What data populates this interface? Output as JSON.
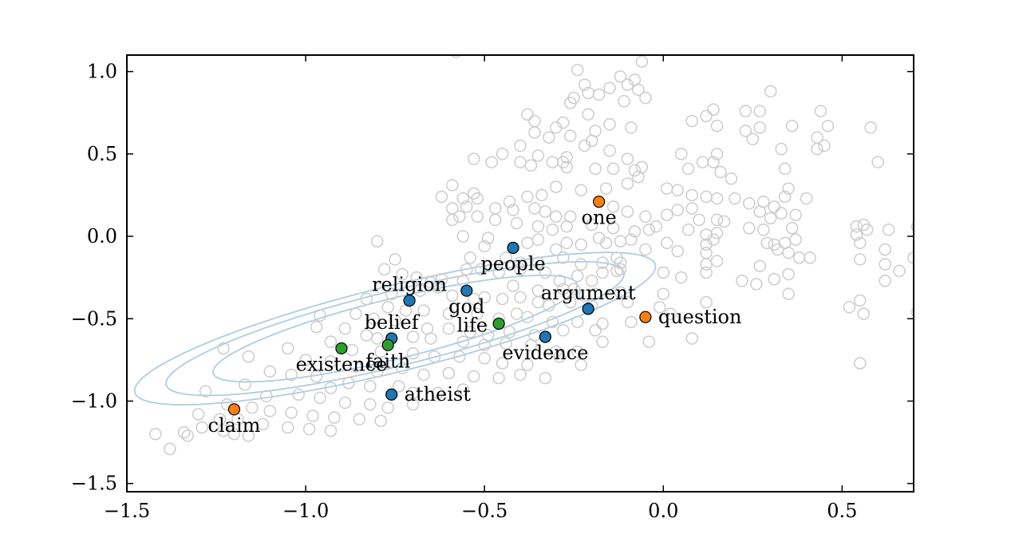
{
  "chart_data": {
    "type": "scatter",
    "title": "",
    "xlabel": "",
    "ylabel": "",
    "xlim": [
      -1.5,
      0.7
    ],
    "ylim": [
      -1.55,
      1.1
    ],
    "grid": false,
    "x_ticks": [
      -1.5,
      -1.0,
      -0.5,
      0.0,
      0.5
    ],
    "x_tick_labels": [
      "−1.5",
      "−1.0",
      "−0.5",
      "0.0",
      "0.5"
    ],
    "y_ticks": [
      1.0,
      0.5,
      0.0,
      -0.5,
      -1.0,
      -1.5
    ],
    "y_tick_labels": [
      "1.0",
      "0.5",
      "0.0",
      "−0.5",
      "−1.0",
      "−1.5"
    ],
    "colors": {
      "background_points": "#cccccc",
      "ellipse": "#aecde2",
      "group_blue": "#1f77b4",
      "group_green": "#2ca02c",
      "group_orange": "#ff7f0e",
      "axes": "#000000"
    },
    "ellipse_contours": {
      "center": [
        -0.75,
        -0.56
      ],
      "semi_major": [
        0.58,
        0.73,
        0.83
      ],
      "semi_minor": [
        0.165,
        0.205,
        0.235
      ],
      "angle_deg": 30
    },
    "labeled_points": [
      {
        "label": "one",
        "x": -0.18,
        "y": 0.21,
        "group": "orange",
        "label_pos": "below"
      },
      {
        "label": "people",
        "x": -0.42,
        "y": -0.07,
        "group": "blue",
        "label_pos": "below"
      },
      {
        "label": "religion",
        "x": -0.71,
        "y": -0.39,
        "group": "blue",
        "label_pos": "above"
      },
      {
        "label": "god",
        "x": -0.55,
        "y": -0.33,
        "group": "blue",
        "label_pos": "below"
      },
      {
        "label": "argument",
        "x": -0.21,
        "y": -0.44,
        "group": "blue",
        "label_pos": "above"
      },
      {
        "label": "question",
        "x": -0.05,
        "y": -0.49,
        "group": "orange",
        "label_pos": "right"
      },
      {
        "label": "belief",
        "x": -0.76,
        "y": -0.62,
        "group": "blue",
        "label_pos": "above"
      },
      {
        "label": "life",
        "x": -0.46,
        "y": -0.53,
        "group": "green",
        "label_pos": "left"
      },
      {
        "label": "faith",
        "x": -0.77,
        "y": -0.66,
        "group": "green",
        "label_pos": "below"
      },
      {
        "label": "existence",
        "x": -0.9,
        "y": -0.68,
        "group": "green",
        "label_pos": "below"
      },
      {
        "label": "evidence",
        "x": -0.33,
        "y": -0.61,
        "group": "blue",
        "label_pos": "below"
      },
      {
        "label": "atheist",
        "x": -0.76,
        "y": -0.96,
        "group": "blue",
        "label_pos": "right"
      },
      {
        "label": "claim",
        "x": -1.2,
        "y": -1.05,
        "group": "orange",
        "label_pos": "below"
      }
    ],
    "background_points": [
      [
        -0.58,
        1.12
      ],
      [
        -0.06,
        1.06
      ],
      [
        -0.24,
        1.01
      ],
      [
        -0.22,
        0.92
      ],
      [
        -0.12,
        0.97
      ],
      [
        -0.15,
        0.9
      ],
      [
        -0.1,
        0.92
      ],
      [
        -0.08,
        0.95
      ],
      [
        -0.07,
        0.89
      ],
      [
        -0.21,
        0.87
      ],
      [
        0.3,
        0.88
      ],
      [
        -0.25,
        0.84
      ],
      [
        -0.18,
        0.86
      ],
      [
        -0.26,
        0.81
      ],
      [
        -0.05,
        0.84
      ],
      [
        -0.11,
        0.82
      ],
      [
        0.14,
        0.77
      ],
      [
        0.23,
        0.76
      ],
      [
        0.27,
        0.76
      ],
      [
        0.44,
        0.76
      ],
      [
        -0.38,
        0.74
      ],
      [
        -0.28,
        0.69
      ],
      [
        -0.36,
        0.7
      ],
      [
        -0.21,
        0.74
      ],
      [
        0.12,
        0.73
      ],
      [
        0.08,
        0.7
      ],
      [
        0.15,
        0.67
      ],
      [
        0.23,
        0.64
      ],
      [
        0.27,
        0.66
      ],
      [
        0.46,
        0.67
      ],
      [
        0.58,
        0.66
      ],
      [
        -0.3,
        0.66
      ],
      [
        -0.15,
        0.68
      ],
      [
        -0.19,
        0.64
      ],
      [
        -0.26,
        0.61
      ],
      [
        -0.36,
        0.63
      ],
      [
        -0.2,
        0.58
      ],
      [
        -0.09,
        0.66
      ],
      [
        0.25,
        0.59
      ],
      [
        0.43,
        0.6
      ],
      [
        0.36,
        0.67
      ],
      [
        -0.32,
        0.6
      ],
      [
        -0.4,
        0.55
      ],
      [
        -0.45,
        0.5
      ],
      [
        -0.35,
        0.49
      ],
      [
        -0.31,
        0.45
      ],
      [
        -0.27,
        0.48
      ],
      [
        -0.22,
        0.55
      ],
      [
        -0.15,
        0.52
      ],
      [
        -0.1,
        0.47
      ],
      [
        0.05,
        0.5
      ],
      [
        0.11,
        0.45
      ],
      [
        0.15,
        0.5
      ],
      [
        0.07,
        0.41
      ],
      [
        0.33,
        0.53
      ],
      [
        0.43,
        0.53
      ],
      [
        0.45,
        0.55
      ],
      [
        0.6,
        0.45
      ],
      [
        -0.53,
        0.47
      ],
      [
        -0.48,
        0.45
      ],
      [
        -0.4,
        0.45
      ],
      [
        -0.37,
        0.43
      ],
      [
        -0.28,
        0.45
      ],
      [
        -0.27,
        0.42
      ],
      [
        -0.19,
        0.41
      ],
      [
        -0.14,
        0.41
      ],
      [
        -0.08,
        0.4
      ],
      [
        -0.06,
        0.42
      ],
      [
        0.14,
        0.45
      ],
      [
        0.19,
        0.35
      ],
      [
        0.16,
        0.39
      ],
      [
        0.34,
        0.41
      ],
      [
        -0.59,
        0.31
      ],
      [
        -0.53,
        0.26
      ],
      [
        -0.52,
        0.23
      ],
      [
        -0.56,
        0.23
      ],
      [
        -0.43,
        0.21
      ],
      [
        -0.38,
        0.24
      ],
      [
        -0.34,
        0.25
      ],
      [
        -0.3,
        0.3
      ],
      [
        -0.23,
        0.28
      ],
      [
        -0.16,
        0.29
      ],
      [
        -0.1,
        0.32
      ],
      [
        -0.07,
        0.36
      ],
      [
        0.01,
        0.29
      ],
      [
        0.04,
        0.28
      ],
      [
        0.08,
        0.25
      ],
      [
        0.12,
        0.24
      ],
      [
        0.15,
        0.23
      ],
      [
        0.2,
        0.23
      ],
      [
        0.24,
        0.2
      ],
      [
        0.28,
        0.21
      ],
      [
        0.31,
        0.18
      ],
      [
        0.34,
        0.24
      ],
      [
        0.35,
        0.29
      ],
      [
        0.4,
        0.23
      ],
      [
        -0.62,
        0.24
      ],
      [
        -0.59,
        0.17
      ],
      [
        -0.55,
        0.18
      ],
      [
        -0.47,
        0.17
      ],
      [
        -0.42,
        0.16
      ],
      [
        -0.36,
        0.17
      ],
      [
        -0.33,
        0.15
      ],
      [
        -0.3,
        0.12
      ],
      [
        -0.26,
        0.12
      ],
      [
        -0.14,
        0.18
      ],
      [
        -0.1,
        0.15
      ],
      [
        -0.05,
        0.12
      ],
      [
        0.01,
        0.13
      ],
      [
        0.04,
        0.16
      ],
      [
        0.08,
        0.17
      ],
      [
        0.1,
        0.1
      ],
      [
        0.15,
        0.1
      ],
      [
        0.17,
        0.09
      ],
      [
        0.27,
        0.15
      ],
      [
        0.3,
        0.11
      ],
      [
        0.33,
        0.14
      ],
      [
        0.37,
        0.13
      ],
      [
        0.54,
        0.06
      ],
      [
        0.56,
        0.07
      ],
      [
        -0.59,
        0.1
      ],
      [
        -0.57,
        0.12
      ],
      [
        -0.52,
        0.12
      ],
      [
        -0.47,
        0.1
      ],
      [
        -0.41,
        0.08
      ],
      [
        -0.35,
        0.06
      ],
      [
        -0.31,
        0.04
      ],
      [
        -0.27,
        0.06
      ],
      [
        -0.2,
        0.07
      ],
      [
        -0.14,
        0.05
      ],
      [
        -0.08,
        0.03
      ],
      [
        -0.04,
        0.04
      ],
      [
        -0.02,
        0.06
      ],
      [
        0.07,
        0.04
      ],
      [
        0.12,
        0.01
      ],
      [
        0.15,
        0.02
      ],
      [
        0.24,
        0.05
      ],
      [
        0.28,
        0.04
      ],
      [
        0.36,
        0.05
      ],
      [
        0.54,
        0.01
      ],
      [
        0.57,
        0.04
      ],
      [
        0.63,
        0.04
      ],
      [
        0.71,
        0.06
      ],
      [
        -0.56,
        0.0
      ],
      [
        -0.49,
        -0.01
      ],
      [
        -0.35,
        -0.02
      ],
      [
        -0.27,
        -0.04
      ],
      [
        -0.18,
        -0.01
      ],
      [
        -0.12,
        -0.03
      ],
      [
        -0.09,
        -0.02
      ],
      [
        0.01,
        -0.04
      ],
      [
        0.12,
        -0.05
      ],
      [
        0.14,
        -0.02
      ],
      [
        0.29,
        -0.04
      ],
      [
        0.31,
        -0.05
      ],
      [
        0.32,
        -0.08
      ],
      [
        0.34,
        -0.04
      ],
      [
        0.37,
        -0.02
      ],
      [
        0.55,
        -0.04
      ],
      [
        0.62,
        -0.08
      ],
      [
        -0.8,
        -0.03
      ],
      [
        -0.5,
        -0.06
      ],
      [
        -0.38,
        -0.04
      ],
      [
        -0.3,
        -0.08
      ],
      [
        -0.23,
        -0.05
      ],
      [
        -0.16,
        -0.04
      ],
      [
        -0.05,
        -0.08
      ],
      [
        0.04,
        -0.09
      ],
      [
        0.12,
        -0.1
      ],
      [
        0.35,
        -0.1
      ],
      [
        0.38,
        -0.13
      ],
      [
        0.41,
        -0.13
      ],
      [
        0.55,
        -0.14
      ],
      [
        0.62,
        -0.17
      ],
      [
        0.7,
        -0.13
      ],
      [
        -0.54,
        -0.13
      ],
      [
        -0.44,
        -0.13
      ],
      [
        -0.4,
        -0.16
      ],
      [
        -0.35,
        -0.16
      ],
      [
        -0.28,
        -0.13
      ],
      [
        -0.23,
        -0.17
      ],
      [
        -0.17,
        -0.16
      ],
      [
        -0.13,
        -0.13
      ],
      [
        -0.12,
        -0.16
      ],
      [
        0.15,
        -0.15
      ],
      [
        0.12,
        -0.17
      ],
      [
        0.27,
        -0.18
      ],
      [
        0.35,
        -0.23
      ],
      [
        0.31,
        -0.26
      ],
      [
        0.62,
        -0.27
      ],
      [
        0.66,
        -0.21
      ],
      [
        -0.78,
        -0.2
      ],
      [
        -0.75,
        -0.14
      ],
      [
        -0.73,
        -0.23
      ],
      [
        -0.69,
        -0.25
      ],
      [
        -0.62,
        -0.26
      ],
      [
        -0.55,
        -0.2
      ],
      [
        -0.51,
        -0.2
      ],
      [
        -0.46,
        -0.22
      ],
      [
        -0.4,
        -0.2
      ],
      [
        -0.33,
        -0.22
      ],
      [
        -0.29,
        -0.27
      ],
      [
        -0.24,
        -0.24
      ],
      [
        -0.2,
        -0.27
      ],
      [
        -0.17,
        -0.22
      ],
      [
        -0.13,
        -0.21
      ],
      [
        -0.12,
        -0.2
      ],
      [
        0.0,
        -0.22
      ],
      [
        0.05,
        -0.25
      ],
      [
        0.12,
        -0.22
      ],
      [
        0.22,
        -0.27
      ],
      [
        -0.65,
        -0.28
      ],
      [
        -0.56,
        -0.27
      ],
      [
        -0.42,
        -0.3
      ],
      [
        -0.35,
        -0.33
      ],
      [
        -0.28,
        -0.32
      ],
      [
        -0.25,
        -0.32
      ],
      [
        -0.22,
        -0.36
      ],
      [
        -0.19,
        -0.35
      ],
      [
        -0.12,
        -0.34
      ],
      [
        0.0,
        -0.35
      ],
      [
        0.12,
        -0.4
      ],
      [
        0.26,
        -0.29
      ],
      [
        0.35,
        -0.35
      ],
      [
        -0.76,
        -0.35
      ],
      [
        -0.68,
        -0.33
      ],
      [
        -0.63,
        -0.31
      ],
      [
        -0.59,
        -0.36
      ],
      [
        -0.53,
        -0.38
      ],
      [
        -0.5,
        -0.37
      ],
      [
        -0.45,
        -0.38
      ],
      [
        -0.4,
        -0.37
      ],
      [
        -0.35,
        -0.4
      ],
      [
        -0.32,
        -0.42
      ],
      [
        -0.26,
        -0.4
      ],
      [
        -0.2,
        -0.42
      ],
      [
        -0.1,
        -0.4
      ],
      [
        -0.01,
        -0.43
      ],
      [
        0.02,
        -0.47
      ],
      [
        0.52,
        -0.43
      ],
      [
        0.55,
        -0.39
      ],
      [
        0.56,
        -0.47
      ],
      [
        0.71,
        -0.46
      ],
      [
        -0.83,
        -0.38
      ],
      [
        -0.77,
        -0.43
      ],
      [
        -0.72,
        -0.45
      ],
      [
        -0.67,
        -0.45
      ],
      [
        -0.6,
        -0.47
      ],
      [
        -0.52,
        -0.47
      ],
      [
        -0.46,
        -0.5
      ],
      [
        -0.41,
        -0.47
      ],
      [
        -0.38,
        -0.49
      ],
      [
        -0.31,
        -0.52
      ],
      [
        -0.24,
        -0.52
      ],
      [
        -0.17,
        -0.53
      ],
      [
        -0.09,
        -0.52
      ],
      [
        -0.96,
        -0.48
      ],
      [
        -0.86,
        -0.47
      ],
      [
        -0.81,
        -0.5
      ],
      [
        -0.75,
        -0.51
      ],
      [
        -0.66,
        -0.56
      ],
      [
        -0.6,
        -0.56
      ],
      [
        -0.54,
        -0.58
      ],
      [
        -0.49,
        -0.6
      ],
      [
        -0.43,
        -0.58
      ],
      [
        -0.36,
        -0.6
      ],
      [
        -0.28,
        -0.57
      ],
      [
        -0.19,
        -0.57
      ],
      [
        -0.97,
        -0.55
      ],
      [
        -0.89,
        -0.56
      ],
      [
        -0.83,
        -0.6
      ],
      [
        -0.8,
        -0.62
      ],
      [
        -0.7,
        -0.61
      ],
      [
        -0.65,
        -0.62
      ],
      [
        -0.56,
        -0.64
      ],
      [
        -0.5,
        -0.66
      ],
      [
        -0.44,
        -0.65
      ],
      [
        -0.37,
        -0.66
      ],
      [
        -0.3,
        -0.7
      ],
      [
        -0.24,
        -0.7
      ],
      [
        -0.17,
        -0.64
      ],
      [
        -0.04,
        -0.64
      ],
      [
        0.08,
        -0.62
      ],
      [
        -1.23,
        -0.68
      ],
      [
        -1.05,
        -0.68
      ],
      [
        -0.93,
        -0.64
      ],
      [
        -0.87,
        -0.69
      ],
      [
        -0.79,
        -0.7
      ],
      [
        -0.7,
        -0.71
      ],
      [
        -0.64,
        -0.73
      ],
      [
        -0.57,
        -0.73
      ],
      [
        -0.5,
        -0.74
      ],
      [
        -0.45,
        -0.77
      ],
      [
        -0.38,
        -0.78
      ],
      [
        -0.29,
        -0.73
      ],
      [
        -0.23,
        -0.78
      ],
      [
        -1.16,
        -0.73
      ],
      [
        -1.0,
        -0.75
      ],
      [
        -0.93,
        -0.76
      ],
      [
        -0.86,
        -0.79
      ],
      [
        -0.8,
        -0.82
      ],
      [
        -0.73,
        -0.8
      ],
      [
        -0.67,
        -0.84
      ],
      [
        -0.6,
        -0.83
      ],
      [
        -0.53,
        -0.85
      ],
      [
        -0.46,
        -0.86
      ],
      [
        -0.4,
        -0.84
      ],
      [
        -0.33,
        -0.86
      ],
      [
        -1.1,
        -0.82
      ],
      [
        -1.04,
        -0.84
      ],
      [
        -0.97,
        -0.85
      ],
      [
        -0.93,
        -0.92
      ],
      [
        -0.88,
        -0.89
      ],
      [
        -0.82,
        -0.91
      ],
      [
        -0.74,
        -0.91
      ],
      [
        -0.7,
        -0.95
      ],
      [
        -0.63,
        -0.95
      ],
      [
        -0.56,
        -0.93
      ],
      [
        -1.28,
        -0.94
      ],
      [
        -1.17,
        -0.9
      ],
      [
        -1.11,
        -0.97
      ],
      [
        -1.02,
        -0.96
      ],
      [
        -0.96,
        -0.98
      ],
      [
        -0.89,
        -1.01
      ],
      [
        -0.82,
        -1.02
      ],
      [
        -0.77,
        -1.04
      ],
      [
        -0.7,
        -1.02
      ],
      [
        0.55,
        -0.77
      ],
      [
        -1.22,
        -1.02
      ],
      [
        -1.15,
        -1.04
      ],
      [
        -1.1,
        -1.06
      ],
      [
        -1.04,
        -1.07
      ],
      [
        -0.98,
        -1.09
      ],
      [
        -0.92,
        -1.1
      ],
      [
        -0.85,
        -1.11
      ],
      [
        -0.79,
        -1.12
      ],
      [
        -1.3,
        -1.08
      ],
      [
        -1.24,
        -1.11
      ],
      [
        -1.19,
        -1.11
      ],
      [
        -1.12,
        -1.14
      ],
      [
        -1.05,
        -1.16
      ],
      [
        -0.99,
        -1.17
      ],
      [
        -0.93,
        -1.18
      ],
      [
        -1.34,
        -1.19
      ],
      [
        -1.33,
        -1.21
      ],
      [
        -1.29,
        -1.16
      ],
      [
        -1.23,
        -1.18
      ],
      [
        -1.2,
        -1.2
      ],
      [
        -1.16,
        -1.21
      ],
      [
        -1.42,
        -1.2
      ],
      [
        -1.38,
        -1.29
      ]
    ]
  }
}
